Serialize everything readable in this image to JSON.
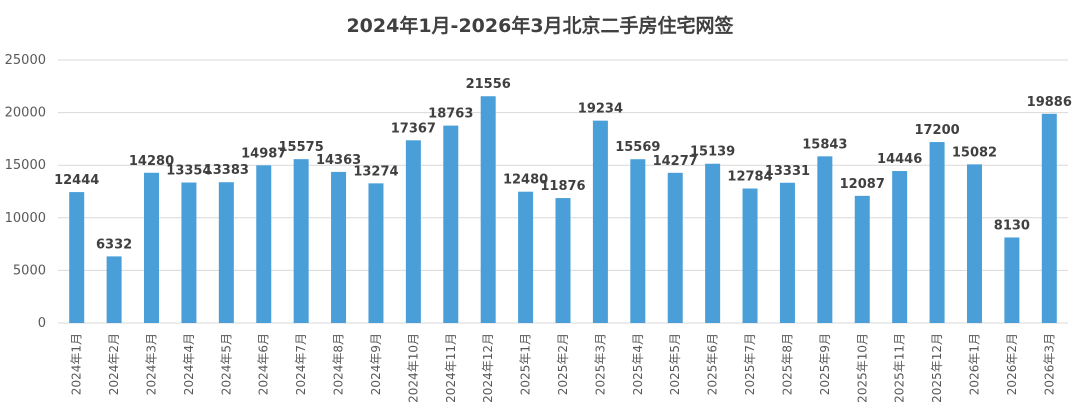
{
  "chart_data": {
    "type": "bar",
    "title": "2024年1月-2026年3月北京二手房住宅网签",
    "xlabel": "",
    "ylabel": "",
    "ylim": [
      0,
      25000
    ],
    "yticks": [
      0,
      5000,
      10000,
      15000,
      20000,
      25000
    ],
    "grid": true,
    "legend": "none",
    "bar_color": "#4a9fd8",
    "categories": [
      "2024年1月",
      "2024年2月",
      "2024年3月",
      "2024年4月",
      "2024年5月",
      "2024年6月",
      "2024年7月",
      "2024年8月",
      "2024年9月",
      "2024年10月",
      "2024年11月",
      "2024年12月",
      "2025年1月",
      "2025年2月",
      "2025年3月",
      "2025年4月",
      "2025年5月",
      "2025年6月",
      "2025年7月",
      "2025年8月",
      "2025年9月",
      "2025年10月",
      "2025年11月",
      "2025年12月",
      "2026年1月",
      "2026年2月",
      "2026年3月"
    ],
    "values": [
      12444,
      6332,
      14280,
      13354,
      13383,
      14987,
      15575,
      14363,
      13274,
      17367,
      18763,
      21556,
      12480,
      11876,
      19234,
      15569,
      14277,
      15139,
      12784,
      13331,
      15843,
      12087,
      14446,
      17200,
      15082,
      8130,
      19886
    ]
  }
}
